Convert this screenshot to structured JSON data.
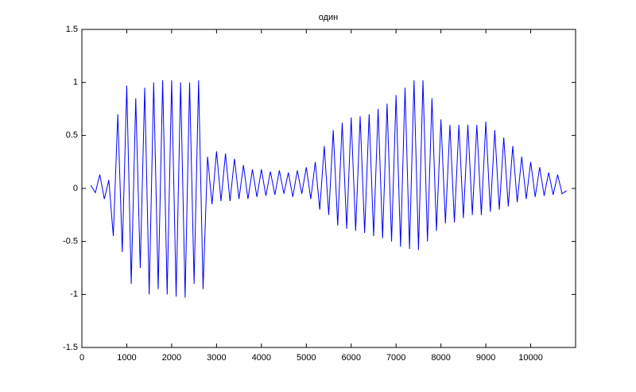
{
  "chart_data": {
    "type": "line",
    "title": "один",
    "color": "#0000ff",
    "xlim": [
      0,
      11000
    ],
    "ylim": [
      -1.5,
      1.5
    ],
    "xticks": [
      0,
      1000,
      2000,
      3000,
      4000,
      5000,
      6000,
      7000,
      8000,
      9000,
      10000
    ],
    "yticks": [
      -1.5,
      -1,
      -0.5,
      0,
      0.5,
      1,
      1.5
    ],
    "x": [
      200,
      300,
      400,
      500,
      600,
      700,
      800,
      900,
      1000,
      1100,
      1200,
      1300,
      1400,
      1500,
      1600,
      1700,
      1800,
      1900,
      2000,
      2100,
      2200,
      2300,
      2400,
      2500,
      2600,
      2700,
      2800,
      2900,
      3000,
      3100,
      3200,
      3300,
      3400,
      3500,
      3600,
      3700,
      3800,
      3900,
      4000,
      4100,
      4200,
      4300,
      4400,
      4500,
      4600,
      4700,
      4800,
      4900,
      5000,
      5100,
      5200,
      5300,
      5400,
      5500,
      5600,
      5700,
      5800,
      5900,
      6000,
      6100,
      6200,
      6300,
      6400,
      6500,
      6600,
      6700,
      6800,
      6900,
      7000,
      7100,
      7200,
      7300,
      7400,
      7500,
      7600,
      7700,
      7800,
      7900,
      8000,
      8100,
      8200,
      8300,
      8400,
      8500,
      8600,
      8700,
      8800,
      8900,
      9000,
      9100,
      9200,
      9300,
      9400,
      9500,
      9600,
      9700,
      9800,
      9900,
      10000,
      10100,
      10200,
      10300,
      10400,
      10500,
      10600,
      10700,
      10800
    ],
    "y": [
      0.03,
      -0.04,
      0.13,
      -0.1,
      0.08,
      -0.45,
      0.7,
      -0.6,
      0.97,
      -0.9,
      0.85,
      -0.75,
      0.95,
      -1.0,
      1.0,
      -0.95,
      1.02,
      -1.0,
      1.02,
      -1.02,
      1.0,
      -1.03,
      1.0,
      -0.9,
      1.02,
      -0.95,
      0.3,
      -0.15,
      0.35,
      -0.12,
      0.33,
      -0.12,
      0.28,
      -0.1,
      0.22,
      -0.1,
      0.18,
      -0.08,
      0.18,
      -0.07,
      0.16,
      -0.06,
      0.17,
      -0.05,
      0.15,
      -0.08,
      0.17,
      -0.05,
      0.2,
      -0.1,
      0.25,
      -0.2,
      0.4,
      -0.25,
      0.55,
      -0.35,
      0.62,
      -0.38,
      0.67,
      -0.4,
      0.68,
      -0.42,
      0.7,
      -0.45,
      0.75,
      -0.47,
      0.8,
      -0.5,
      0.88,
      -0.55,
      0.95,
      -0.57,
      1.02,
      -0.58,
      1.02,
      -0.5,
      0.85,
      -0.4,
      0.65,
      -0.33,
      0.6,
      -0.32,
      0.6,
      -0.28,
      0.6,
      -0.25,
      0.6,
      -0.25,
      0.63,
      -0.22,
      0.55,
      -0.2,
      0.48,
      -0.17,
      0.4,
      -0.13,
      0.3,
      -0.1,
      0.25,
      -0.08,
      0.2,
      -0.07,
      0.15,
      -0.06,
      0.13,
      -0.05,
      -0.02
    ]
  }
}
